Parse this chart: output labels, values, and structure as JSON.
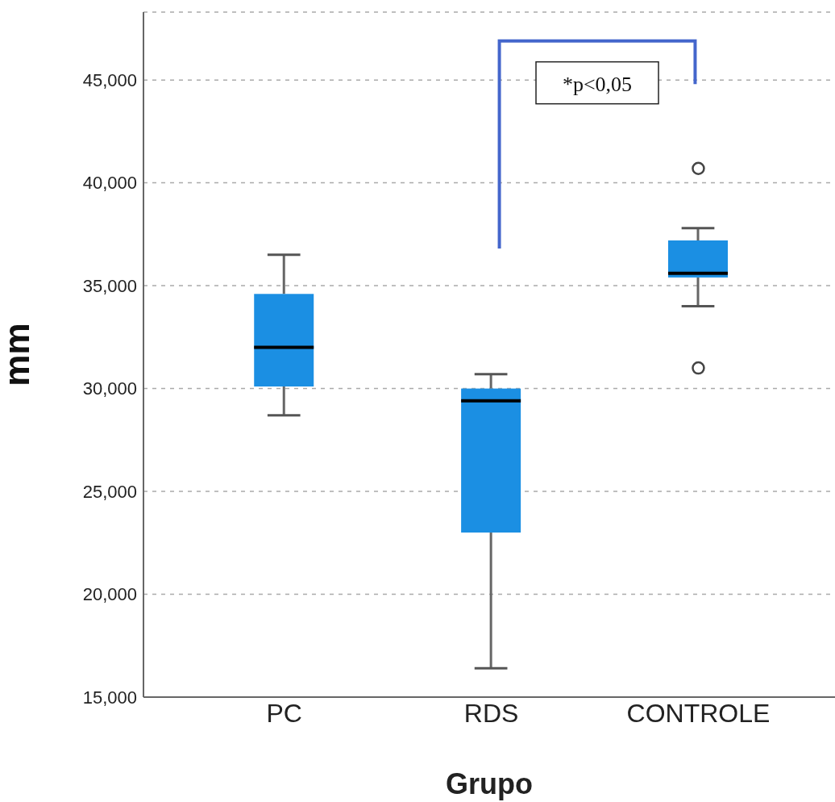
{
  "chart_data": {
    "type": "box",
    "categories": [
      "PC",
      "RDS",
      "CONTROLE"
    ],
    "xlabel": "Grupo",
    "ylabel": "mm",
    "color": "#1b8fe3",
    "boxes": [
      {
        "low": 28700,
        "q1": 30100,
        "median": 32000,
        "q3": 34600,
        "high": 36500
      },
      {
        "low": 16400,
        "q1": 23000,
        "median": 29400,
        "q3": 30000,
        "high": 30700
      },
      {
        "low": 34000,
        "q1": 35400,
        "median": 35600,
        "q3": 37200,
        "high": 37800,
        "outliers": [
          40700,
          31000
        ]
      }
    ],
    "ylim": [
      15000,
      48300
    ],
    "yticks": [
      {
        "value": 15000,
        "label": "15,000"
      },
      {
        "value": 20000,
        "label": "20,000"
      },
      {
        "value": 25000,
        "label": "25,000"
      },
      {
        "value": 30000,
        "label": "30,000"
      },
      {
        "value": 35000,
        "label": "35,000"
      },
      {
        "value": 40000,
        "label": "40,000"
      },
      {
        "value": 45000,
        "label": "45,000"
      }
    ],
    "grid": "y",
    "annotations": [
      "*p<0,05"
    ]
  }
}
